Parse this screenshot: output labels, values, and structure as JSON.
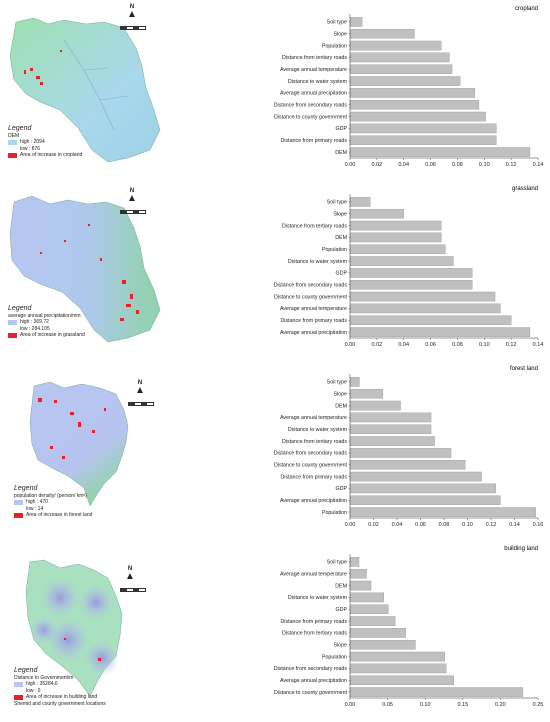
{
  "panels": [
    {
      "map": {
        "legend_title": "Legend",
        "layer": "DEM",
        "high_label": "high : 2094",
        "low_label": "low : 876",
        "increase_label": "Area of increase in cropland",
        "colors": {
          "high": "#a8d8ea",
          "low": "#8fd3a8",
          "increase": "#e8202a"
        }
      },
      "chart_data": {
        "type": "bar",
        "title": "cropland",
        "orientation": "horizontal",
        "categories": [
          "Soil type",
          "Slope",
          "Population",
          "Distance from tertiary roads",
          "Average annual temperature",
          "Distance to water system",
          "Average annual precipitation",
          "Distance from secondary roads",
          "Distance to county government",
          "GDP",
          "Distance from primary roads",
          "DEM"
        ],
        "values": [
          0.009,
          0.048,
          0.068,
          0.074,
          0.076,
          0.082,
          0.093,
          0.096,
          0.101,
          0.109,
          0.109,
          0.134
        ],
        "xlim": [
          0,
          0.14
        ],
        "xticks": [
          "0.00",
          "0.02",
          "0.04",
          "0.06",
          "0.08",
          "0.10",
          "0.12",
          "0.14"
        ],
        "bar_color": "#c0c0c0",
        "grid": false
      }
    },
    {
      "map": {
        "legend_title": "Legend",
        "layer": "average annual precipitation/mm",
        "high_label": "high : 369.72",
        "low_label": "low : 284.105",
        "increase_label": "Area of increase in grassland",
        "colors": {
          "high": "#b6c6f0",
          "low": "#8fd3a8",
          "increase": "#e8202a"
        }
      },
      "chart_data": {
        "type": "bar",
        "title": "grassland",
        "orientation": "horizontal",
        "categories": [
          "Soil type",
          "Slope",
          "Distance from tertiary roads",
          "DEM",
          "Population",
          "Distance to water system",
          "GDP",
          "Distance from secondary roads",
          "Distance to county government",
          "Average annual temperature",
          "Distance from primary roads",
          "Average annual precipitation"
        ],
        "values": [
          0.015,
          0.04,
          0.068,
          0.068,
          0.071,
          0.077,
          0.091,
          0.091,
          0.108,
          0.112,
          0.12,
          0.134
        ],
        "xlim": [
          0,
          0.14
        ],
        "xticks": [
          "0.00",
          "0.02",
          "0.04",
          "0.06",
          "0.08",
          "0.10",
          "0.12",
          "0.14"
        ],
        "bar_color": "#c0c0c0",
        "grid": false
      }
    },
    {
      "map": {
        "legend_title": "Legend",
        "layer": "population density/ (person/ km²)",
        "high_label": "high : 470",
        "low_label": "low : 14",
        "increase_label": "Area of increase in forest land",
        "colors": {
          "high": "#b6c6f0",
          "low": "#8fd3a8",
          "increase": "#e8202a"
        }
      },
      "chart_data": {
        "type": "bar",
        "title": "forest land",
        "orientation": "horizontal",
        "categories": [
          "Soil type",
          "Slope",
          "DEM",
          "Average annual temperature",
          "Distance to water system",
          "Distance from tertiary roads",
          "Distance from secondary roads",
          "Distance to county government",
          "Distance from primary roads",
          "GDP",
          "Average annual precipitation",
          "Population"
        ],
        "values": [
          0.008,
          0.028,
          0.043,
          0.069,
          0.069,
          0.072,
          0.086,
          0.098,
          0.112,
          0.124,
          0.128,
          0.158
        ],
        "xlim": [
          0,
          0.16
        ],
        "xticks": [
          "0.00",
          "0.02",
          "0.04",
          "0.06",
          "0.08",
          "0.10",
          "0.12",
          "0.14",
          "0.16"
        ],
        "bar_color": "#c0c0c0",
        "grid": false
      }
    },
    {
      "map": {
        "legend_title": "Legend",
        "layer": "Distance to Government/m",
        "high_label": "high : 35284.6",
        "low_label": "low : 0",
        "increase_label": "Area of increase in building land",
        "extra_label": "Shemid and county government locations",
        "colors": {
          "high": "#b6c6f0",
          "low": "#a8e0c0",
          "increase": "#e8202a"
        }
      },
      "chart_data": {
        "type": "bar",
        "title": "building land",
        "orientation": "horizontal",
        "categories": [
          "Soil type",
          "Average annual temperature",
          "DEM",
          "Distance to water system",
          "GDP",
          "Distance from primary roads",
          "Distance from tertiary roads",
          "Slope",
          "Population",
          "Distance from secondary roads",
          "Average annual precipitation",
          "Distance to county government"
        ],
        "values": [
          0.012,
          0.022,
          0.028,
          0.045,
          0.051,
          0.06,
          0.074,
          0.087,
          0.126,
          0.128,
          0.138,
          0.23
        ],
        "xlim": [
          0,
          0.25
        ],
        "xticks": [
          "0.00",
          "0.05",
          "0.10",
          "0.15",
          "0.20",
          "0.25"
        ],
        "bar_color": "#c0c0c0",
        "grid": false
      }
    }
  ]
}
